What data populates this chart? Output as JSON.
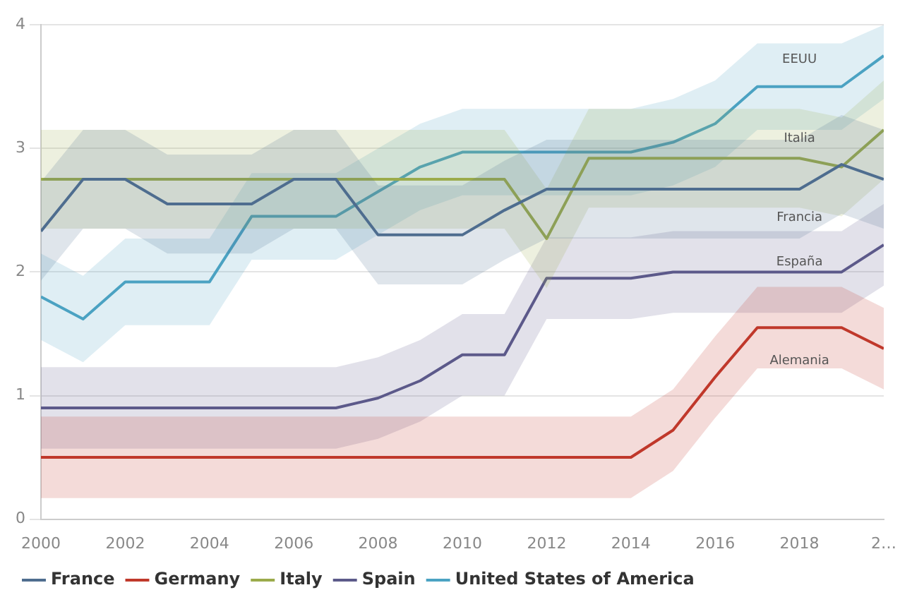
{
  "chart_data": {
    "type": "line",
    "x": [
      2000,
      2001,
      2002,
      2003,
      2004,
      2005,
      2006,
      2007,
      2008,
      2009,
      2010,
      2011,
      2012,
      2013,
      2014,
      2015,
      2016,
      2017,
      2018,
      2019,
      2020
    ],
    "series": [
      {
        "name": "France",
        "color": "#4f6d8f",
        "values": [
          2.33,
          2.75,
          2.75,
          2.55,
          2.55,
          2.55,
          2.75,
          2.75,
          2.3,
          2.3,
          2.3,
          2.5,
          2.67,
          2.67,
          2.67,
          2.67,
          2.67,
          2.67,
          2.67,
          2.87,
          2.75
        ],
        "lower": [
          1.93,
          2.35,
          2.35,
          2.15,
          2.15,
          2.15,
          2.35,
          2.35,
          1.9,
          1.9,
          1.9,
          2.1,
          2.27,
          2.27,
          2.27,
          2.27,
          2.27,
          2.27,
          2.27,
          2.47,
          2.35
        ],
        "upper": [
          2.73,
          3.15,
          3.15,
          2.95,
          2.95,
          2.95,
          3.15,
          3.15,
          2.7,
          2.7,
          2.7,
          2.9,
          3.07,
          3.07,
          3.07,
          3.07,
          3.07,
          3.07,
          3.07,
          3.27,
          3.15
        ]
      },
      {
        "name": "Germany",
        "color": "#c0392b",
        "values": [
          0.5,
          0.5,
          0.5,
          0.5,
          0.5,
          0.5,
          0.5,
          0.5,
          0.5,
          0.5,
          0.5,
          0.5,
          0.5,
          0.5,
          0.5,
          0.72,
          1.15,
          1.55,
          1.55,
          1.55,
          1.38
        ],
        "lower": [
          0.17,
          0.17,
          0.17,
          0.17,
          0.17,
          0.17,
          0.17,
          0.17,
          0.17,
          0.17,
          0.17,
          0.17,
          0.17,
          0.17,
          0.17,
          0.39,
          0.82,
          1.22,
          1.22,
          1.22,
          1.05
        ],
        "upper": [
          0.83,
          0.83,
          0.83,
          0.83,
          0.83,
          0.83,
          0.83,
          0.83,
          0.83,
          0.83,
          0.83,
          0.83,
          0.83,
          0.83,
          0.83,
          1.05,
          1.48,
          1.88,
          1.88,
          1.88,
          1.71
        ]
      },
      {
        "name": "Italy",
        "color": "#9bab4b",
        "values": [
          2.75,
          2.75,
          2.75,
          2.75,
          2.75,
          2.75,
          2.75,
          2.75,
          2.75,
          2.75,
          2.75,
          2.75,
          2.27,
          2.92,
          2.92,
          2.92,
          2.92,
          2.92,
          2.92,
          2.85,
          3.15
        ],
        "lower": [
          2.35,
          2.35,
          2.35,
          2.35,
          2.35,
          2.35,
          2.35,
          2.35,
          2.35,
          2.35,
          2.35,
          2.35,
          1.87,
          2.52,
          2.52,
          2.52,
          2.52,
          2.52,
          2.52,
          2.45,
          2.75
        ],
        "upper": [
          3.15,
          3.15,
          3.15,
          3.15,
          3.15,
          3.15,
          3.15,
          3.15,
          3.15,
          3.15,
          3.15,
          3.15,
          2.67,
          3.32,
          3.32,
          3.32,
          3.32,
          3.32,
          3.32,
          3.25,
          3.55
        ]
      },
      {
        "name": "Spain",
        "color": "#5c5a8a",
        "values": [
          0.9,
          0.9,
          0.9,
          0.9,
          0.9,
          0.9,
          0.9,
          0.9,
          0.98,
          1.12,
          1.33,
          1.33,
          1.95,
          1.95,
          1.95,
          2.0,
          2.0,
          2.0,
          2.0,
          2.0,
          2.22
        ],
        "lower": [
          0.57,
          0.57,
          0.57,
          0.57,
          0.57,
          0.57,
          0.57,
          0.57,
          0.65,
          0.79,
          1.0,
          1.0,
          1.62,
          1.62,
          1.62,
          1.67,
          1.67,
          1.67,
          1.67,
          1.67,
          1.89
        ],
        "upper": [
          1.23,
          1.23,
          1.23,
          1.23,
          1.23,
          1.23,
          1.23,
          1.23,
          1.31,
          1.45,
          1.66,
          1.66,
          2.28,
          2.28,
          2.28,
          2.33,
          2.33,
          2.33,
          2.33,
          2.33,
          2.55
        ]
      },
      {
        "name": "United States of America",
        "color": "#4ba3c3",
        "values": [
          1.8,
          1.62,
          1.92,
          1.92,
          1.92,
          2.45,
          2.45,
          2.45,
          2.65,
          2.85,
          2.97,
          2.97,
          2.97,
          2.97,
          2.97,
          3.05,
          3.2,
          3.5,
          3.5,
          3.5,
          3.75
        ],
        "lower": [
          1.45,
          1.27,
          1.57,
          1.57,
          1.57,
          2.1,
          2.1,
          2.1,
          2.3,
          2.5,
          2.62,
          2.62,
          2.62,
          2.62,
          2.62,
          2.7,
          2.85,
          3.15,
          3.15,
          3.15,
          3.4
        ],
        "upper": [
          2.15,
          1.97,
          2.27,
          2.27,
          2.27,
          2.8,
          2.8,
          2.8,
          3.0,
          3.2,
          3.32,
          3.32,
          3.32,
          3.32,
          3.32,
          3.4,
          3.55,
          3.85,
          3.85,
          3.85,
          4.0
        ]
      }
    ],
    "annotations": [
      "EEUU",
      "Italia",
      "Francia",
      "España",
      "Alemania"
    ],
    "xlim": [
      2000,
      2020
    ],
    "xticks": [
      2000,
      2002,
      2004,
      2006,
      2008,
      2010,
      2012,
      2014,
      2016,
      2018,
      {
        "value": 2020,
        "label": "2…"
      }
    ],
    "ylim": [
      0,
      4
    ],
    "yticks": [
      0,
      1,
      2,
      3,
      4
    ],
    "grid": "y",
    "legend": "bottom",
    "marker": "none",
    "line_style": "solid"
  }
}
